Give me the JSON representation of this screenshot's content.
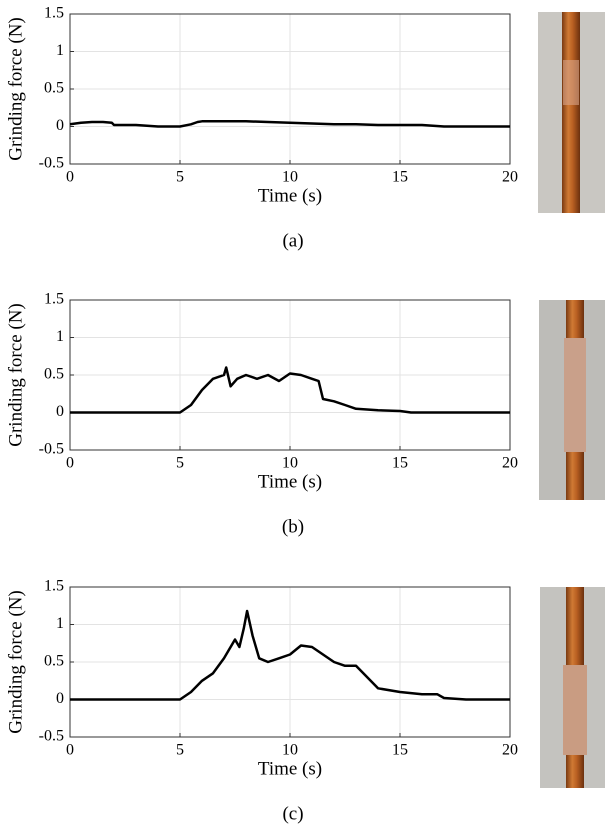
{
  "chart_data": [
    {
      "type": "line",
      "caption": "(a)",
      "x_label": "Time (s)",
      "y_label": "Grinding force (N)",
      "x": [
        0,
        0.5,
        1,
        1.5,
        1.9,
        2,
        3,
        4,
        5,
        5.5,
        5.8,
        6,
        7,
        8,
        9,
        10,
        11,
        12,
        13,
        14,
        15,
        16,
        17,
        18,
        19,
        20
      ],
      "values": [
        0.03,
        0.05,
        0.06,
        0.06,
        0.05,
        0.02,
        0.02,
        0,
        0,
        0.03,
        0.06,
        0.07,
        0.07,
        0.07,
        0.06,
        0.05,
        0.04,
        0.03,
        0.03,
        0.02,
        0.02,
        0.02,
        0,
        0,
        0,
        0
      ],
      "color": "#000000",
      "xlim": [
        0,
        20
      ],
      "ylim": [
        -0.5,
        1.5
      ],
      "xticks": [
        0,
        5,
        10,
        15,
        20
      ],
      "yticks": [
        -0.5,
        0,
        0.5,
        1,
        1.5
      ],
      "grid": true
    },
    {
      "type": "line",
      "caption": "(b)",
      "x_label": "Time (s)",
      "y_label": "Grinding force (N)",
      "x": [
        0,
        2,
        4,
        5,
        5.5,
        6,
        6.5,
        7,
        7.1,
        7.3,
        7.6,
        8,
        8.5,
        9,
        9.5,
        10,
        10.5,
        11,
        11.3,
        11.5,
        12,
        12.5,
        13,
        14,
        15,
        15.5,
        17,
        20
      ],
      "values": [
        0,
        0,
        0,
        0,
        0.1,
        0.3,
        0.45,
        0.5,
        0.6,
        0.35,
        0.45,
        0.5,
        0.45,
        0.5,
        0.42,
        0.52,
        0.5,
        0.45,
        0.42,
        0.18,
        0.15,
        0.1,
        0.05,
        0.03,
        0.02,
        0,
        0,
        0
      ],
      "color": "#000000",
      "xlim": [
        0,
        20
      ],
      "ylim": [
        -0.5,
        1.5
      ],
      "xticks": [
        0,
        5,
        10,
        15,
        20
      ],
      "yticks": [
        -0.5,
        0,
        0.5,
        1,
        1.5
      ],
      "grid": true
    },
    {
      "type": "line",
      "caption": "(c)",
      "x_label": "Time (s)",
      "y_label": "Grinding force (N)",
      "x": [
        0,
        2,
        4,
        5,
        5.5,
        6,
        6.5,
        7,
        7.5,
        7.7,
        7.9,
        8.05,
        8.3,
        8.6,
        9,
        9.5,
        10,
        10.5,
        11,
        11.5,
        12,
        12.5,
        13,
        13.5,
        14,
        15,
        16,
        16.7,
        17,
        18,
        20
      ],
      "values": [
        0,
        0,
        0,
        0,
        0.1,
        0.25,
        0.35,
        0.55,
        0.8,
        0.7,
        0.95,
        1.18,
        0.85,
        0.55,
        0.5,
        0.55,
        0.6,
        0.72,
        0.7,
        0.6,
        0.5,
        0.45,
        0.45,
        0.3,
        0.15,
        0.1,
        0.07,
        0.07,
        0.02,
        0,
        0
      ],
      "color": "#000000",
      "xlim": [
        0,
        20
      ],
      "ylim": [
        -0.5,
        1.5
      ],
      "xticks": [
        0,
        5,
        10,
        15,
        20
      ],
      "yticks": [
        -0.5,
        0,
        0.5,
        1,
        1.5
      ],
      "grid": true
    }
  ]
}
